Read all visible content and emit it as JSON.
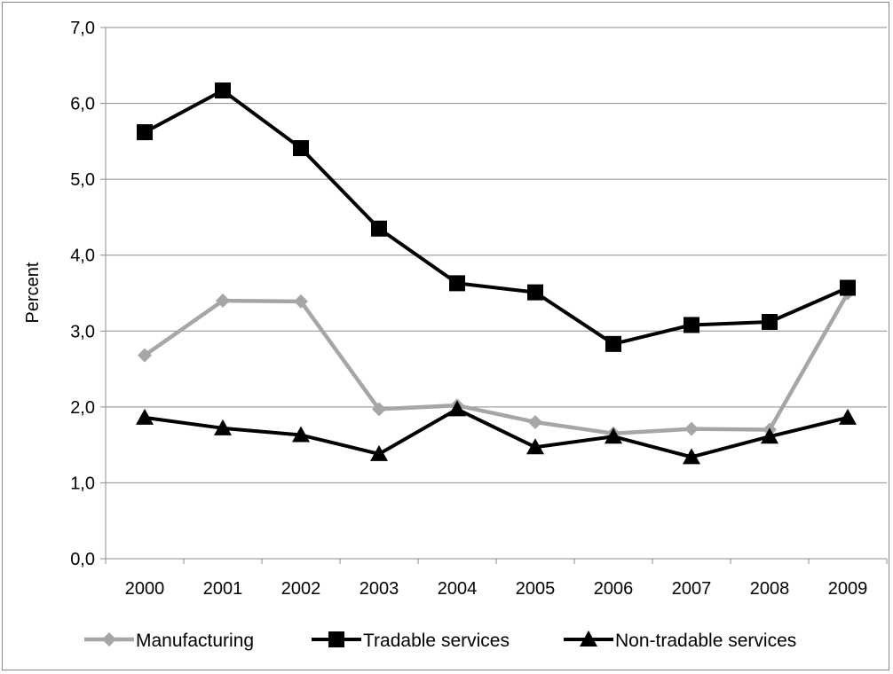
{
  "chart_data": {
    "type": "line",
    "ylabel": "Percent",
    "ylim": [
      0,
      7
    ],
    "ytick_step": 1,
    "ytick_labels": [
      "0,0",
      "1,0",
      "2,0",
      "3,0",
      "4,0",
      "5,0",
      "6,0",
      "7,0"
    ],
    "grid": "horizontal",
    "legend_position": "bottom",
    "categories": [
      "2000",
      "2001",
      "2002",
      "2003",
      "2004",
      "2005",
      "2006",
      "2007",
      "2008",
      "2009"
    ],
    "series": [
      {
        "name": "Manufacturing",
        "color": "#a6a6a6",
        "marker": "diamond",
        "values": [
          2.68,
          3.4,
          3.39,
          1.97,
          2.02,
          1.8,
          1.65,
          1.71,
          1.7,
          3.5
        ]
      },
      {
        "name": "Tradable services",
        "color": "#000000",
        "marker": "square",
        "values": [
          5.62,
          6.17,
          5.41,
          4.35,
          3.63,
          3.51,
          2.83,
          3.08,
          3.12,
          3.57
        ]
      },
      {
        "name": "Non-tradable services",
        "color": "#000000",
        "marker": "triangle",
        "values": [
          1.86,
          1.72,
          1.63,
          1.38,
          1.97,
          1.47,
          1.61,
          1.34,
          1.61,
          1.86
        ]
      }
    ]
  }
}
